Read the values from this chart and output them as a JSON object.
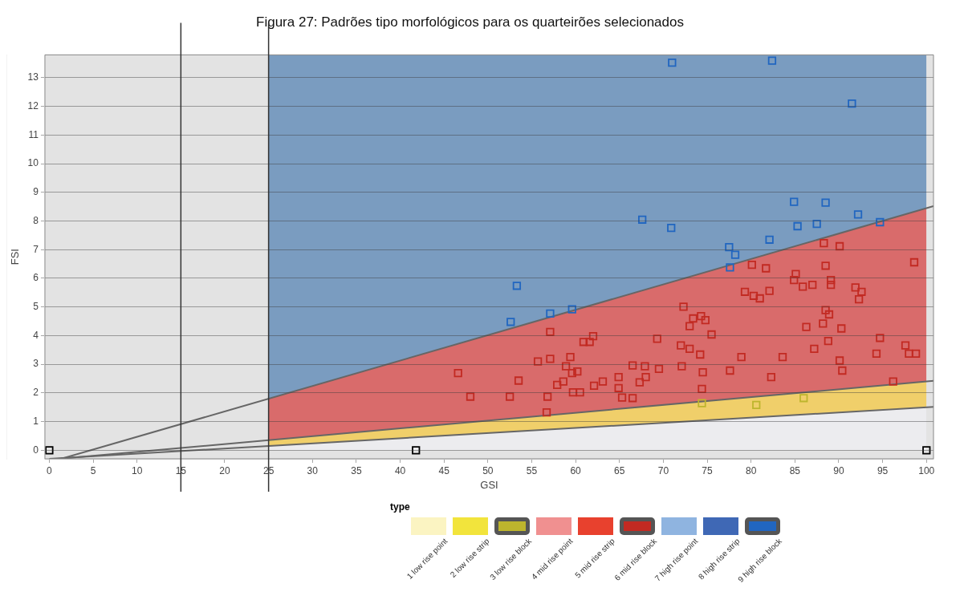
{
  "chart_data": {
    "type": "scatter",
    "title": "Figura 27: Padrões tipo morfológicos para os quarteirões selecionados",
    "xlabel": "GSI",
    "ylabel": "FSI",
    "legend_title": "type",
    "legend": "bottom",
    "grid": "y",
    "stacked": true,
    "marker": "square",
    "xlim": [
      -0.5,
      100.8
    ],
    "ylim": [
      -0.3,
      13.8
    ],
    "xticks": [
      0,
      5,
      10,
      15,
      20,
      25,
      30,
      35,
      40,
      45,
      50,
      55,
      60,
      65,
      70,
      75,
      80,
      85,
      90,
      95,
      100
    ],
    "yticks": [
      0,
      1,
      2,
      3,
      4,
      5,
      6,
      7,
      8,
      9,
      10,
      11,
      12,
      13
    ],
    "ref_lines": [
      {
        "axis": "x",
        "value": 15,
        "color": "#333333"
      },
      {
        "axis": "x",
        "value": 25,
        "color": "#333333"
      }
    ],
    "series": [
      {
        "type": "area",
        "marker": "none",
        "color": "#ececef",
        "x": [
          25,
          100
        ],
        "values": [
          0.15,
          1.5
        ]
      },
      {
        "type": "area",
        "marker": "none",
        "color": "#f0cf6a",
        "x": [
          25,
          100
        ],
        "values": [
          0.2,
          0.9
        ]
      },
      {
        "type": "area",
        "marker": "none",
        "color": "#d96b6b",
        "x": [
          25,
          100
        ],
        "values": [
          1.45,
          6.05
        ]
      },
      {
        "type": "area",
        "marker": "none",
        "color": "#7a9cc0",
        "x": [
          25,
          100
        ],
        "values": [
          12.0,
          5.35
        ]
      },
      {
        "type": "line",
        "marker": "none",
        "color": "#666666",
        "x": [
          1.35,
          100.8
        ],
        "values": [
          -0.3,
          8.52
        ]
      },
      {
        "type": "line",
        "marker": "none",
        "color": "#666666",
        "x": [
          1.1,
          100.8
        ],
        "values": [
          -0.3,
          2.42
        ]
      },
      {
        "type": "line",
        "marker": "none",
        "color": "#666666",
        "x": [
          0,
          100.8
        ],
        "values": [
          -0.3,
          1.51
        ]
      },
      {
        "name": "1 low rise point",
        "color": "#fbf4c2"
      },
      {
        "name": "2 low rise strip",
        "color": "#f2e43c"
      },
      {
        "name": "3 low rise block",
        "color": "#bdb52d",
        "x": [
          74.4,
          80.6,
          86.0
        ],
        "values": [
          1.64,
          1.58,
          1.82
        ]
      },
      {
        "name": "4 mid rise point",
        "color": "#f09090"
      },
      {
        "name": "5 mid rise strip",
        "color": "#e8412e"
      },
      {
        "name": "6 mid rise block",
        "color": "#c22a22",
        "x": [
          57.1,
          46.6,
          48.0,
          52.5,
          53.5,
          55.7,
          57.1,
          56.8,
          56.7,
          57.9,
          58.6,
          58.9,
          59.4,
          59.6,
          60.2,
          59.7,
          60.5,
          60.9,
          61.6,
          62.0,
          62.1,
          63.1,
          64.9,
          64.9,
          65.3,
          66.5,
          66.5,
          67.3,
          67.9,
          68.0,
          69.3,
          69.5,
          72.3,
          73.4,
          74.3,
          74.8,
          73.0,
          75.5,
          72.0,
          73.0,
          74.2,
          72.1,
          74.5,
          74.4,
          77.6,
          78.9,
          83.6,
          82.3,
          79.3,
          80.3,
          81.0,
          82.1,
          80.1,
          81.7,
          85.1,
          84.9,
          85.9,
          87.0,
          88.5,
          89.1,
          89.1,
          88.3,
          90.1,
          98.6,
          91.9,
          92.6,
          92.3,
          88.5,
          88.9,
          88.2,
          86.3,
          90.3,
          88.8,
          87.2,
          94.7,
          94.3,
          97.6,
          98.0,
          98.8,
          90.1,
          90.4,
          96.2
        ],
        "values": [
          4.13,
          2.69,
          1.87,
          1.87,
          2.43,
          3.1,
          3.19,
          1.87,
          1.32,
          2.28,
          2.4,
          2.93,
          3.25,
          2.69,
          2.75,
          2.02,
          2.02,
          3.78,
          3.78,
          3.98,
          2.25,
          2.4,
          2.55,
          2.17,
          1.84,
          1.82,
          2.96,
          2.37,
          2.93,
          2.55,
          3.89,
          2.84,
          5.01,
          4.6,
          4.68,
          4.54,
          4.33,
          4.04,
          3.66,
          3.54,
          3.34,
          2.93,
          2.72,
          2.14,
          2.78,
          3.25,
          3.25,
          2.55,
          5.53,
          5.39,
          5.3,
          5.56,
          6.47,
          6.35,
          6.15,
          5.94,
          5.71,
          5.77,
          6.44,
          5.94,
          5.77,
          7.23,
          7.12,
          6.56,
          5.68,
          5.53,
          5.27,
          4.89,
          4.74,
          4.42,
          4.3,
          4.25,
          3.81,
          3.54,
          3.92,
          3.37,
          3.66,
          3.37,
          3.37,
          3.13,
          2.78,
          2.4
        ]
      },
      {
        "name": "7 high rise point",
        "color": "#8fb4e0"
      },
      {
        "name": "8 high rise strip",
        "color": "#3f68b5"
      },
      {
        "name": "9 high rise block",
        "color": "#2166c0",
        "x": [
          71.0,
          82.4,
          91.5,
          67.6,
          70.9,
          84.9,
          88.5,
          92.2,
          94.7,
          85.3,
          87.5,
          82.1,
          77.5,
          78.2,
          77.6,
          53.3,
          52.6,
          57.1,
          59.6
        ],
        "values": [
          13.53,
          13.6,
          12.1,
          8.05,
          7.76,
          8.67,
          8.64,
          8.23,
          7.96,
          7.82,
          7.9,
          7.35,
          7.09,
          6.82,
          6.38,
          5.74,
          4.48,
          4.77,
          4.92
        ]
      },
      {
        "color": "#000000",
        "x": [
          0,
          41.8,
          100
        ],
        "values": [
          0,
          0,
          0
        ]
      }
    ]
  }
}
